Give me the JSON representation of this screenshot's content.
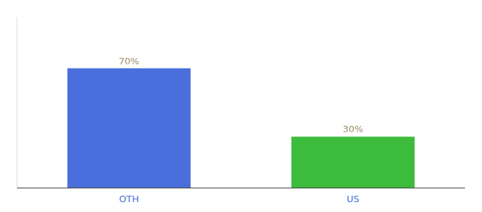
{
  "chart_data": {
    "type": "bar",
    "categories": [
      "OTH",
      "US"
    ],
    "values": [
      70,
      30
    ],
    "value_labels": [
      "70%",
      "30%"
    ],
    "colors": [
      "#4a6fdc",
      "#3dbb3d"
    ],
    "ylim": [
      0,
      100
    ],
    "data_labels": true,
    "tick_labels": "x"
  }
}
